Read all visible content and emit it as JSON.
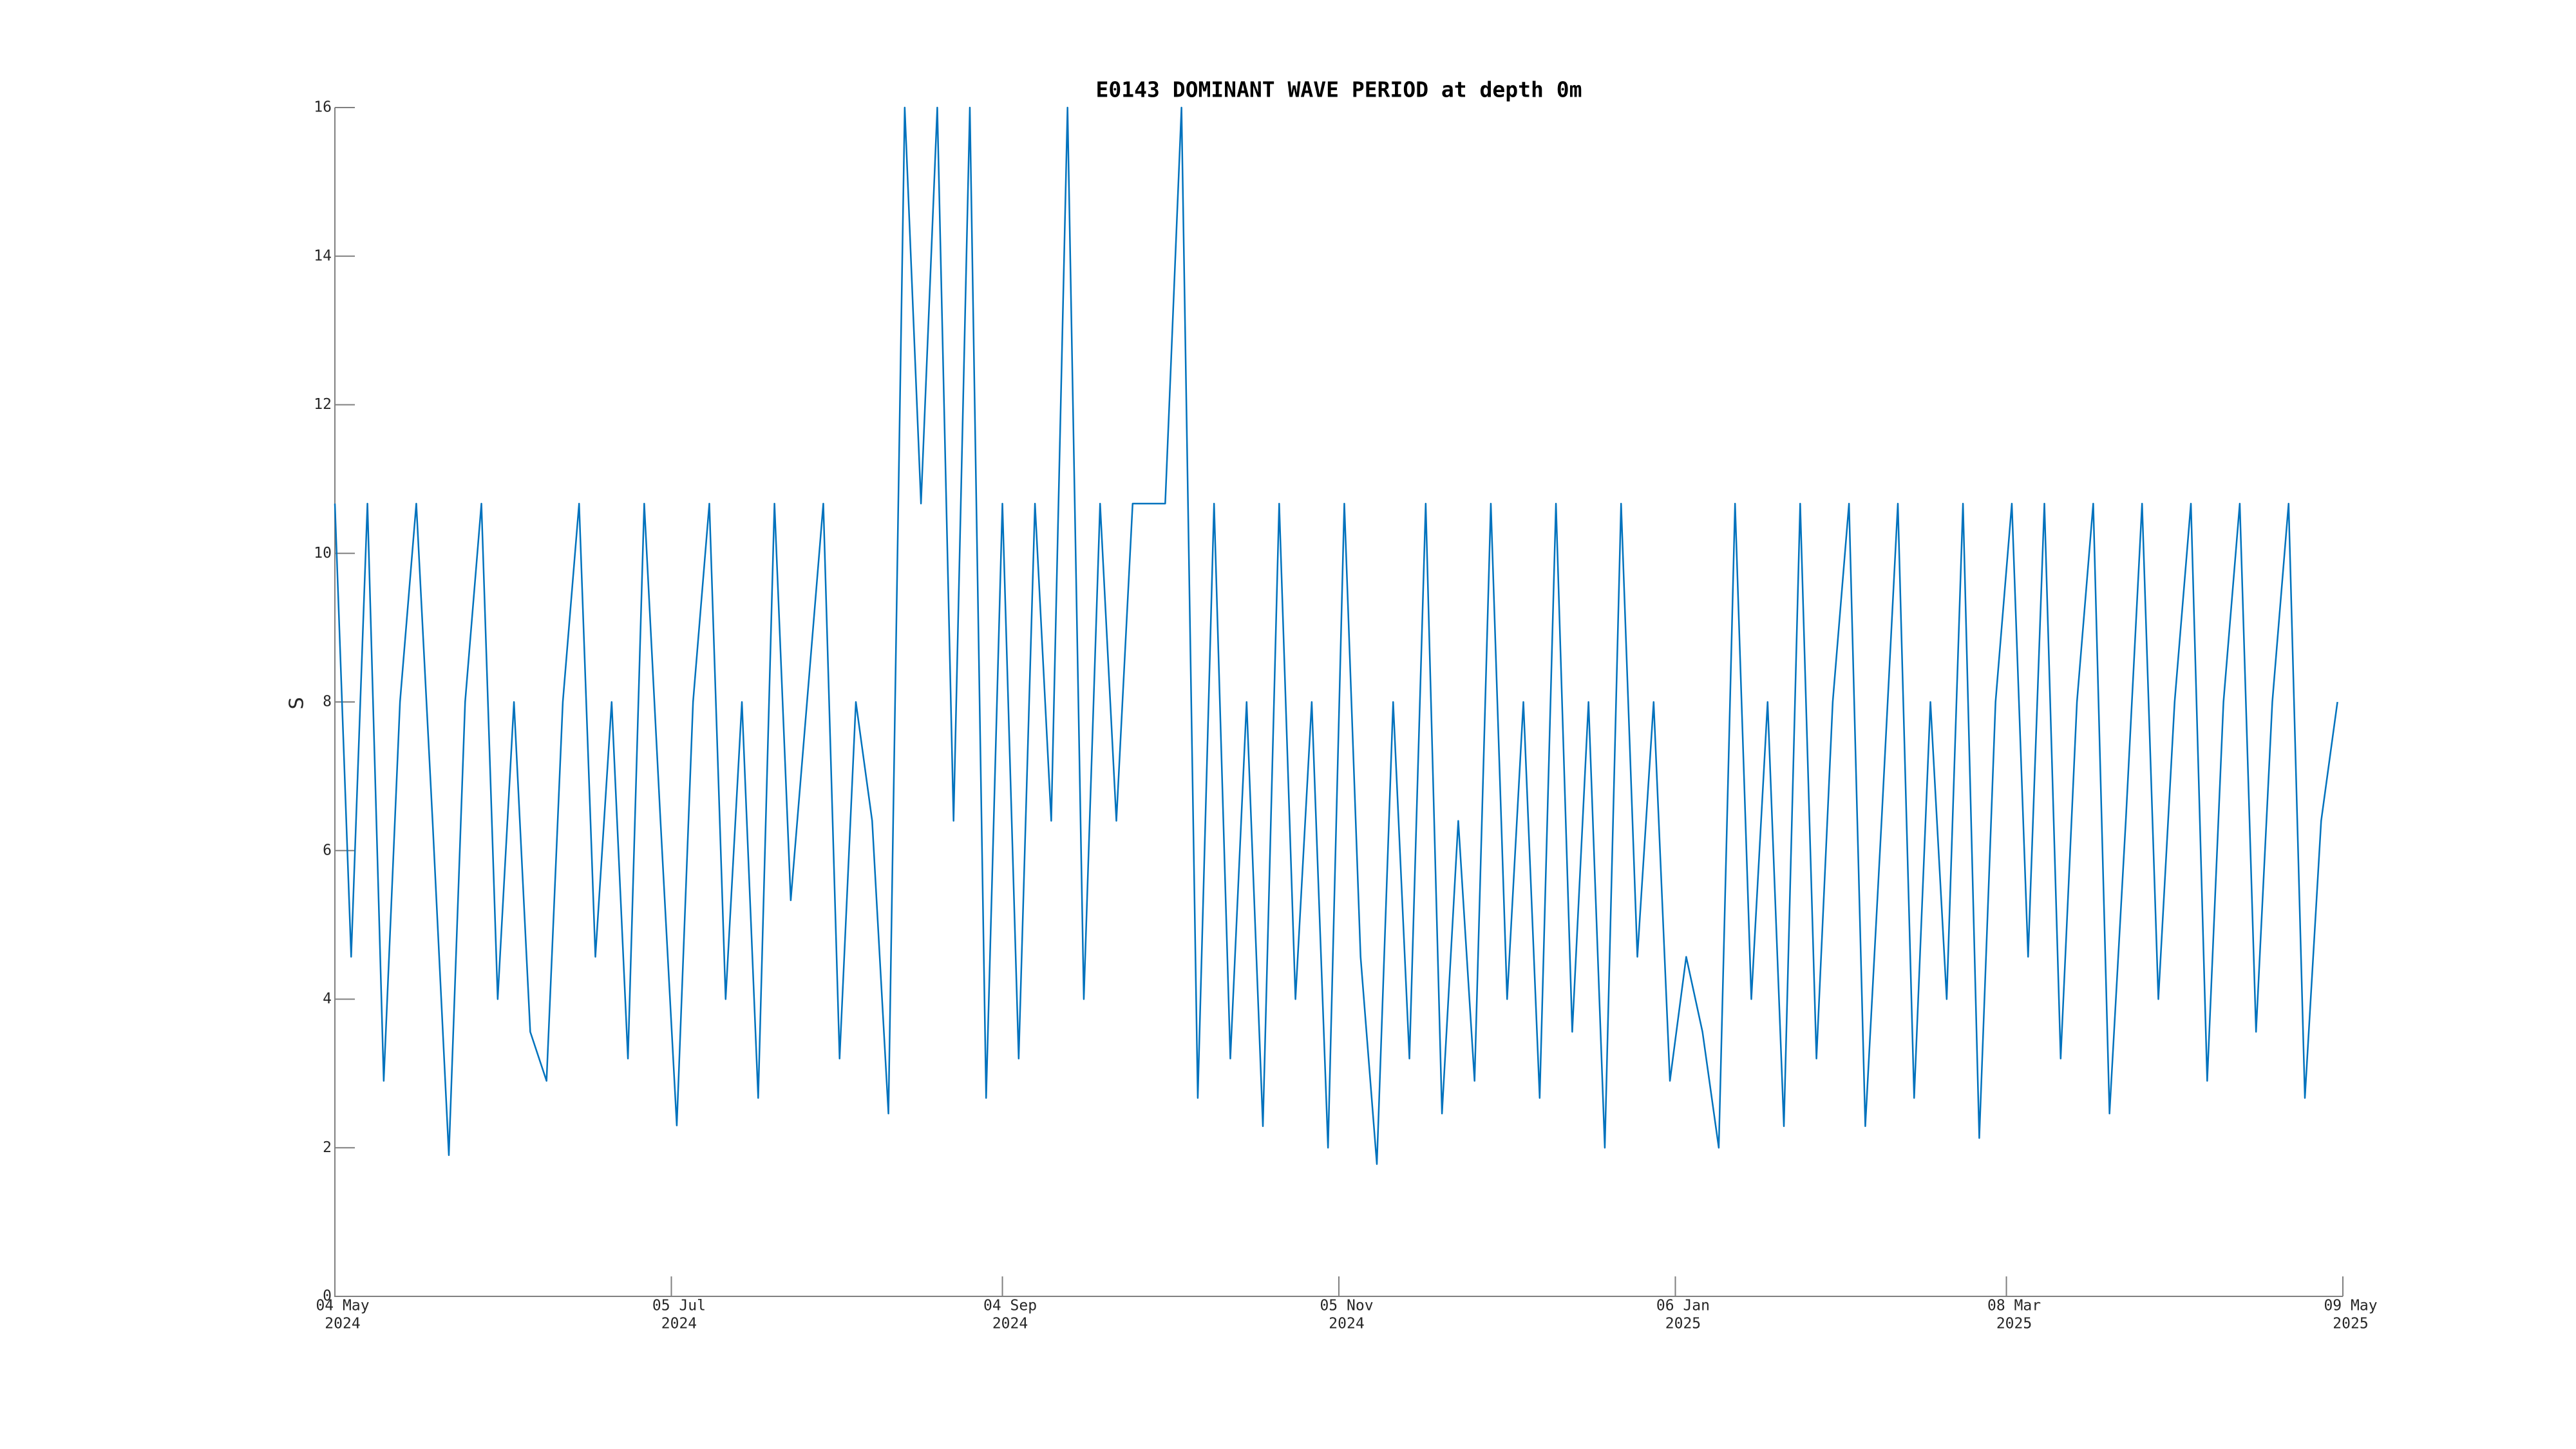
{
  "chart_data": {
    "type": "line",
    "title": "E0143 DOMINANT WAVE PERIOD at depth 0m",
    "ylabel": "S",
    "color": "#0072bd",
    "xlim": [
      "2024-05-04",
      "2025-05-09"
    ],
    "xticks": [
      {
        "value": "2024-05-04",
        "label": [
          "04 May",
          "2024"
        ]
      },
      {
        "value": "2024-07-05",
        "label": [
          "05 Jul",
          "2024"
        ]
      },
      {
        "value": "2024-09-04",
        "label": [
          "04 Sep",
          "2024"
        ]
      },
      {
        "value": "2024-11-05",
        "label": [
          "05 Nov",
          "2024"
        ]
      },
      {
        "value": "2025-01-06",
        "label": [
          "06 Jan",
          "2025"
        ]
      },
      {
        "value": "2025-03-08",
        "label": [
          "08 Mar",
          "2025"
        ]
      },
      {
        "value": "2025-05-09",
        "label": [
          "09 May",
          "2025"
        ]
      }
    ],
    "ylim": [
      0,
      16
    ],
    "yticks": [
      0,
      2,
      4,
      6,
      8,
      10,
      12,
      14,
      16
    ],
    "x": [
      "2024-05-04",
      "2024-05-07",
      "2024-05-10",
      "2024-05-13",
      "2024-05-16",
      "2024-05-19",
      "2024-05-22",
      "2024-05-25",
      "2024-05-28",
      "2024-05-31",
      "2024-06-03",
      "2024-06-06",
      "2024-06-09",
      "2024-06-12",
      "2024-06-15",
      "2024-06-18",
      "2024-06-21",
      "2024-06-24",
      "2024-06-27",
      "2024-06-30",
      "2024-07-03",
      "2024-07-06",
      "2024-07-09",
      "2024-07-12",
      "2024-07-15",
      "2024-07-18",
      "2024-07-21",
      "2024-07-24",
      "2024-07-27",
      "2024-07-30",
      "2024-08-02",
      "2024-08-05",
      "2024-08-08",
      "2024-08-11",
      "2024-08-14",
      "2024-08-17",
      "2024-08-20",
      "2024-08-23",
      "2024-08-26",
      "2024-08-29",
      "2024-09-01",
      "2024-09-04",
      "2024-09-07",
      "2024-09-10",
      "2024-09-13",
      "2024-09-16",
      "2024-09-19",
      "2024-09-22",
      "2024-09-25",
      "2024-09-28",
      "2024-10-01",
      "2024-10-04",
      "2024-10-07",
      "2024-10-10",
      "2024-10-13",
      "2024-10-16",
      "2024-10-19",
      "2024-10-22",
      "2024-10-25",
      "2024-10-28",
      "2024-10-31",
      "2024-11-03",
      "2024-11-06",
      "2024-11-09",
      "2024-11-12",
      "2024-11-15",
      "2024-11-18",
      "2024-11-21",
      "2024-11-24",
      "2024-11-27",
      "2024-11-30",
      "2024-12-03",
      "2024-12-06",
      "2024-12-09",
      "2024-12-12",
      "2024-12-15",
      "2024-12-18",
      "2024-12-21",
      "2024-12-24",
      "2024-12-27",
      "2024-12-30",
      "2025-01-02",
      "2025-01-05",
      "2025-01-08",
      "2025-01-11",
      "2025-01-14",
      "2025-01-17",
      "2025-01-20",
      "2025-01-23",
      "2025-01-26",
      "2025-01-29",
      "2025-02-01",
      "2025-02-04",
      "2025-02-07",
      "2025-02-10",
      "2025-02-13",
      "2025-02-16",
      "2025-02-19",
      "2025-02-22",
      "2025-02-25",
      "2025-02-28",
      "2025-03-03",
      "2025-03-06",
      "2025-03-09",
      "2025-03-12",
      "2025-03-15",
      "2025-03-18",
      "2025-03-21",
      "2025-03-24",
      "2025-03-27",
      "2025-03-30",
      "2025-04-02",
      "2025-04-05",
      "2025-04-08",
      "2025-04-11",
      "2025-04-14",
      "2025-04-17",
      "2025-04-20",
      "2025-04-23",
      "2025-04-26",
      "2025-04-29",
      "2025-05-02",
      "2025-05-05",
      "2025-05-08"
    ],
    "values": [
      10.67,
      4.57,
      10.67,
      2.9,
      8,
      10.67,
      6.4,
      1.9,
      8,
      10.67,
      4,
      8,
      3.56,
      2.9,
      8,
      10.67,
      4.57,
      8,
      3.2,
      10.67,
      6.4,
      2.3,
      8,
      10.67,
      4,
      8,
      2.67,
      10.67,
      5.33,
      8,
      10.67,
      3.2,
      8,
      6.4,
      2.46,
      16,
      10.67,
      16,
      6.4,
      16,
      2.67,
      10.67,
      3.2,
      10.67,
      6.4,
      16,
      4,
      10.67,
      6.4,
      10.67,
      10.67,
      10.67,
      16,
      2.67,
      10.67,
      3.2,
      8,
      2.29,
      10.67,
      4,
      8,
      2.0,
      10.67,
      4.57,
      1.78,
      8,
      3.2,
      10.67,
      2.46,
      6.4,
      2.9,
      10.67,
      4,
      8,
      2.67,
      10.67,
      3.56,
      8,
      2.0,
      10.67,
      4.57,
      8,
      2.9,
      4.57,
      3.56,
      2.0,
      10.67,
      4,
      8,
      2.29,
      10.67,
      3.2,
      8,
      10.67,
      2.29,
      6.4,
      10.67,
      2.67,
      8,
      4,
      10.67,
      2.13,
      8,
      10.67,
      4.57,
      10.67,
      3.2,
      8,
      10.67,
      2.46,
      6.4,
      10.67,
      4,
      8,
      10.67,
      2.9,
      8,
      10.67,
      3.56,
      8,
      10.67,
      2.67,
      6.4,
      8
    ]
  }
}
